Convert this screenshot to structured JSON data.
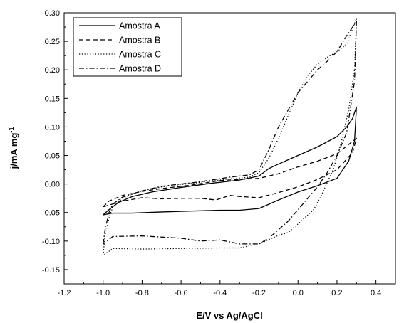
{
  "chart_data": {
    "type": "line",
    "title": "",
    "xlabel": "E/V vs Ag/AgCl",
    "ylabel": "j/mA mg",
    "ylabel_superscript": "-1",
    "xlim": [
      -1.2,
      0.5
    ],
    "ylim": [
      -0.175,
      0.3
    ],
    "x_ticks": [
      "-1.2",
      "-1.0",
      "-0.8",
      "-0.6",
      "-0.4",
      "-0.2",
      "0.0",
      "0.2",
      "0.4"
    ],
    "y_ticks": [
      "-0.15",
      "-0.10",
      "-0.05",
      "0.00",
      "0.05",
      "0.10",
      "0.15",
      "0.20",
      "0.25",
      "0.30"
    ],
    "grid": false,
    "legend_position": "top-left",
    "series": [
      {
        "name": "Amostra A",
        "line_style": "solid",
        "points": [
          [
            -1.0,
            -0.054
          ],
          [
            -0.97,
            -0.045
          ],
          [
            -0.92,
            -0.032
          ],
          [
            -0.85,
            -0.022
          ],
          [
            -0.75,
            -0.014
          ],
          [
            -0.6,
            -0.006
          ],
          [
            -0.45,
            0.001
          ],
          [
            -0.3,
            0.007
          ],
          [
            -0.2,
            0.014
          ],
          [
            -0.15,
            0.027
          ],
          [
            -0.1,
            0.035
          ],
          [
            0.0,
            0.05
          ],
          [
            0.1,
            0.065
          ],
          [
            0.2,
            0.083
          ],
          [
            0.25,
            0.1
          ],
          [
            0.28,
            0.115
          ],
          [
            0.3,
            0.135
          ],
          [
            0.29,
            0.075
          ],
          [
            0.26,
            0.04
          ],
          [
            0.2,
            0.01
          ],
          [
            0.1,
            -0.003
          ],
          [
            0.0,
            -0.014
          ],
          [
            -0.1,
            -0.028
          ],
          [
            -0.2,
            -0.043
          ],
          [
            -0.3,
            -0.046
          ],
          [
            -0.4,
            -0.046
          ],
          [
            -0.5,
            -0.047
          ],
          [
            -0.7,
            -0.049
          ],
          [
            -0.85,
            -0.051
          ],
          [
            -0.95,
            -0.051
          ],
          [
            -1.0,
            -0.054
          ]
        ]
      },
      {
        "name": "Amostra B",
        "line_style": "dashed",
        "points": [
          [
            -1.0,
            -0.04
          ],
          [
            -0.97,
            -0.03
          ],
          [
            -0.9,
            -0.02
          ],
          [
            -0.8,
            -0.013
          ],
          [
            -0.7,
            -0.008
          ],
          [
            -0.55,
            -0.002
          ],
          [
            -0.4,
            0.006
          ],
          [
            -0.3,
            0.008
          ],
          [
            -0.2,
            0.01
          ],
          [
            -0.1,
            0.018
          ],
          [
            0.0,
            0.03
          ],
          [
            0.1,
            0.04
          ],
          [
            0.2,
            0.053
          ],
          [
            0.3,
            0.08
          ],
          [
            0.28,
            0.055
          ],
          [
            0.2,
            0.025
          ],
          [
            0.1,
            0.008
          ],
          [
            0.0,
            -0.005
          ],
          [
            -0.1,
            -0.015
          ],
          [
            -0.2,
            -0.024
          ],
          [
            -0.3,
            -0.022
          ],
          [
            -0.35,
            -0.02
          ],
          [
            -0.42,
            -0.028
          ],
          [
            -0.5,
            -0.025
          ],
          [
            -0.6,
            -0.025
          ],
          [
            -0.7,
            -0.026
          ],
          [
            -0.8,
            -0.024
          ],
          [
            -0.9,
            -0.03
          ],
          [
            -0.97,
            -0.037
          ],
          [
            -1.0,
            -0.04
          ]
        ]
      },
      {
        "name": "Amostra C",
        "line_style": "dotted",
        "points": [
          [
            -1.0,
            -0.125
          ],
          [
            -0.99,
            -0.09
          ],
          [
            -0.97,
            -0.06
          ],
          [
            -0.95,
            -0.04
          ],
          [
            -0.9,
            -0.025
          ],
          [
            -0.8,
            -0.012
          ],
          [
            -0.7,
            -0.005
          ],
          [
            -0.5,
            0.003
          ],
          [
            -0.35,
            0.009
          ],
          [
            -0.25,
            0.012
          ],
          [
            -0.2,
            0.02
          ],
          [
            -0.15,
            0.045
          ],
          [
            -0.1,
            0.08
          ],
          [
            -0.05,
            0.12
          ],
          [
            0.0,
            0.16
          ],
          [
            0.05,
            0.19
          ],
          [
            0.1,
            0.21
          ],
          [
            0.15,
            0.222
          ],
          [
            0.2,
            0.232
          ],
          [
            0.25,
            0.245
          ],
          [
            0.3,
            0.29
          ],
          [
            0.29,
            0.2
          ],
          [
            0.26,
            0.13
          ],
          [
            0.22,
            0.07
          ],
          [
            0.18,
            0.025
          ],
          [
            0.12,
            -0.02
          ],
          [
            0.08,
            -0.045
          ],
          [
            0.0,
            -0.07
          ],
          [
            -0.05,
            -0.085
          ],
          [
            -0.1,
            -0.09
          ],
          [
            -0.2,
            -0.105
          ],
          [
            -0.3,
            -0.112
          ],
          [
            -0.4,
            -0.112
          ],
          [
            -0.6,
            -0.113
          ],
          [
            -0.8,
            -0.114
          ],
          [
            -0.95,
            -0.113
          ],
          [
            -1.0,
            -0.125
          ]
        ]
      },
      {
        "name": "Amostra D",
        "line_style": "dash-dot",
        "points": [
          [
            -1.0,
            -0.105
          ],
          [
            -0.99,
            -0.08
          ],
          [
            -0.97,
            -0.05
          ],
          [
            -0.95,
            -0.035
          ],
          [
            -0.9,
            -0.023
          ],
          [
            -0.8,
            -0.012
          ],
          [
            -0.7,
            -0.004
          ],
          [
            -0.5,
            0.004
          ],
          [
            -0.35,
            0.012
          ],
          [
            -0.25,
            0.016
          ],
          [
            -0.2,
            0.025
          ],
          [
            -0.15,
            0.06
          ],
          [
            -0.1,
            0.1
          ],
          [
            -0.05,
            0.13
          ],
          [
            0.0,
            0.16
          ],
          [
            0.05,
            0.18
          ],
          [
            0.1,
            0.2
          ],
          [
            0.15,
            0.215
          ],
          [
            0.2,
            0.232
          ],
          [
            0.25,
            0.26
          ],
          [
            0.3,
            0.285
          ],
          [
            0.29,
            0.18
          ],
          [
            0.25,
            0.09
          ],
          [
            0.2,
            0.05
          ],
          [
            0.15,
            0.02
          ],
          [
            0.1,
            -0.005
          ],
          [
            0.05,
            -0.025
          ],
          [
            0.0,
            -0.045
          ],
          [
            -0.05,
            -0.065
          ],
          [
            -0.1,
            -0.08
          ],
          [
            -0.15,
            -0.095
          ],
          [
            -0.2,
            -0.105
          ],
          [
            -0.3,
            -0.105
          ],
          [
            -0.4,
            -0.098
          ],
          [
            -0.5,
            -0.1
          ],
          [
            -0.6,
            -0.095
          ],
          [
            -0.8,
            -0.091
          ],
          [
            -0.95,
            -0.092
          ],
          [
            -1.0,
            -0.105
          ]
        ]
      }
    ]
  }
}
